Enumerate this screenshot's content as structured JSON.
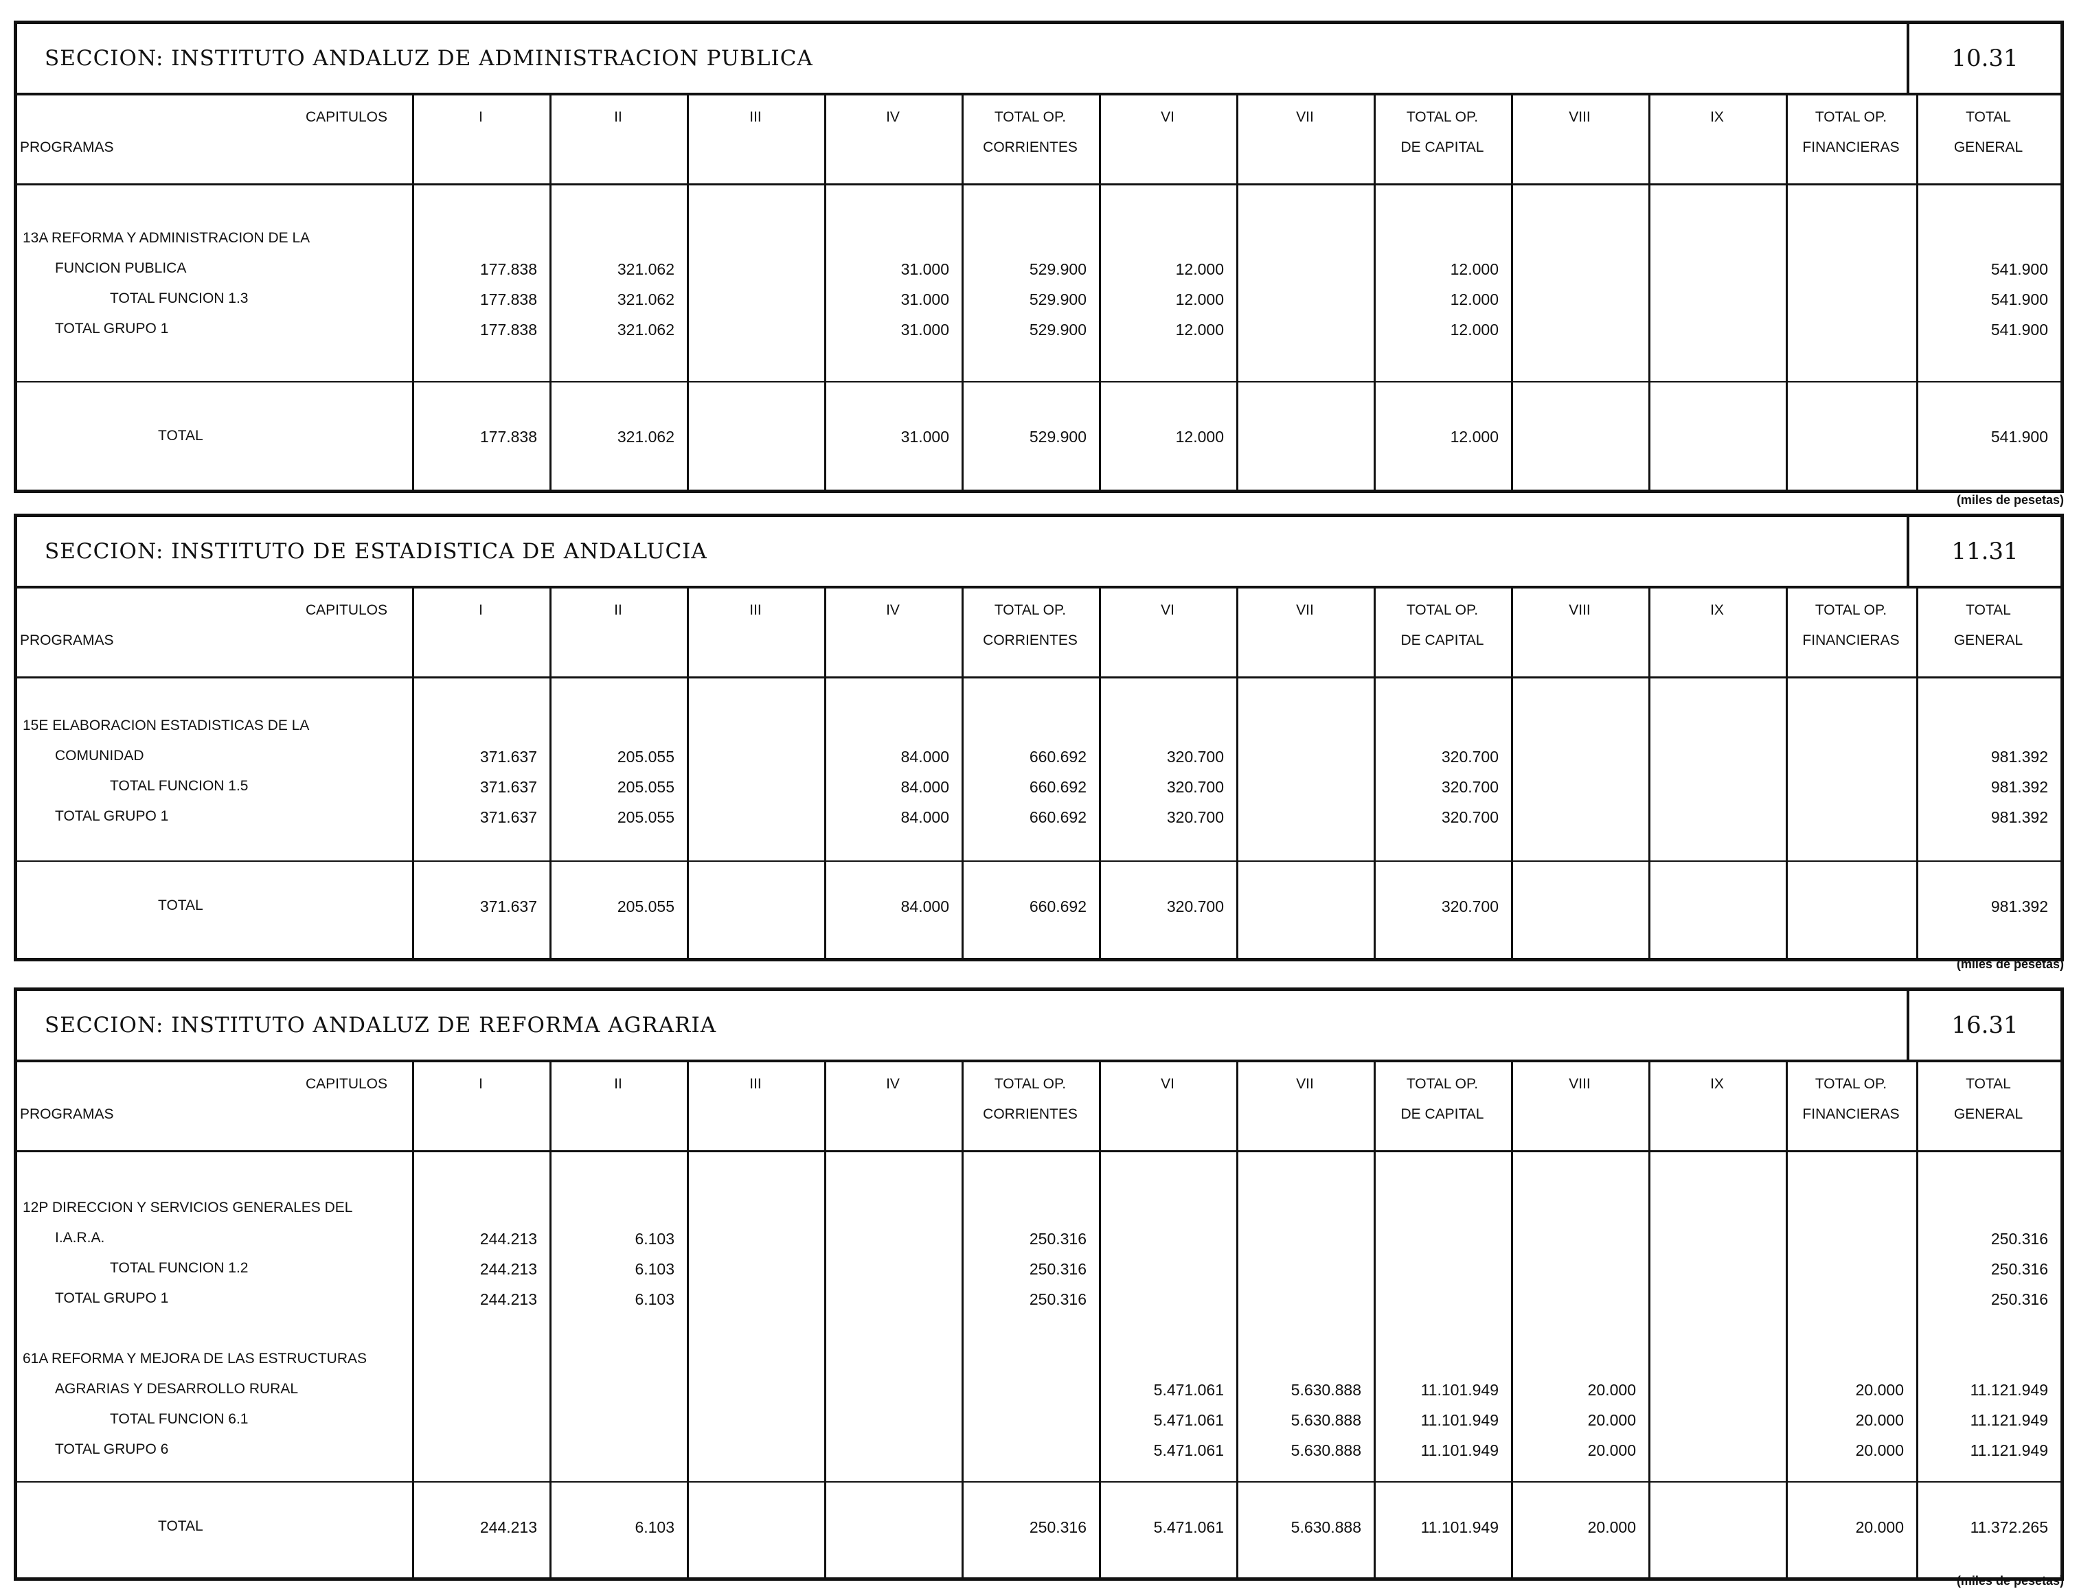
{
  "headers": {
    "capitulos": "CAPITULOS",
    "programas": "PROGRAMAS",
    "cols": [
      {
        "l1": "I",
        "l2": ""
      },
      {
        "l1": "II",
        "l2": ""
      },
      {
        "l1": "III",
        "l2": ""
      },
      {
        "l1": "IV",
        "l2": ""
      },
      {
        "l1": "TOTAL OP.",
        "l2": "CORRIENTES"
      },
      {
        "l1": "VI",
        "l2": ""
      },
      {
        "l1": "VII",
        "l2": ""
      },
      {
        "l1": "TOTAL OP.",
        "l2": "DE CAPITAL"
      },
      {
        "l1": "VIII",
        "l2": ""
      },
      {
        "l1": "IX",
        "l2": ""
      },
      {
        "l1": "TOTAL OP.",
        "l2": "FINANCIERAS"
      },
      {
        "l1": "TOTAL",
        "l2": "GENERAL"
      }
    ]
  },
  "units": "(miles de pesetas)",
  "sections": [
    {
      "title": "SECCION:  INSTITUTO ANDALUZ DE ADMINISTRACION PUBLICA",
      "code": "10.31",
      "rows": [
        {
          "label": "13A REFORMA Y ADMINISTRACION DE LA",
          "indent": 0,
          "values": [
            "",
            "",
            "",
            "",
            "",
            "",
            "",
            "",
            "",
            "",
            "",
            ""
          ]
        },
        {
          "label": "FUNCION PUBLICA",
          "indent": 1,
          "values": [
            "177.838",
            "321.062",
            "",
            "31.000",
            "529.900",
            "12.000",
            "",
            "12.000",
            "",
            "",
            "",
            "541.900"
          ]
        },
        {
          "label": "TOTAL FUNCION 1.3",
          "indent": 2,
          "values": [
            "177.838",
            "321.062",
            "",
            "31.000",
            "529.900",
            "12.000",
            "",
            "12.000",
            "",
            "",
            "",
            "541.900"
          ]
        },
        {
          "label": "TOTAL GRUPO 1",
          "indent": 1,
          "values": [
            "177.838",
            "321.062",
            "",
            "31.000",
            "529.900",
            "12.000",
            "",
            "12.000",
            "",
            "",
            "",
            "541.900"
          ]
        }
      ],
      "total": {
        "label": "TOTAL",
        "values": [
          "177.838",
          "321.062",
          "",
          "31.000",
          "529.900",
          "12.000",
          "",
          "12.000",
          "",
          "",
          "",
          "541.900"
        ]
      }
    },
    {
      "title": "SECCION:  INSTITUTO DE ESTADISTICA DE ANDALUCIA",
      "code": "11.31",
      "rows": [
        {
          "label": "15E ELABORACION ESTADISTICAS DE LA",
          "indent": 0,
          "values": [
            "",
            "",
            "",
            "",
            "",
            "",
            "",
            "",
            "",
            "",
            "",
            ""
          ]
        },
        {
          "label": "COMUNIDAD",
          "indent": 1,
          "values": [
            "371.637",
            "205.055",
            "",
            "84.000",
            "660.692",
            "320.700",
            "",
            "320.700",
            "",
            "",
            "",
            "981.392"
          ]
        },
        {
          "label": "TOTAL FUNCION 1.5",
          "indent": 2,
          "values": [
            "371.637",
            "205.055",
            "",
            "84.000",
            "660.692",
            "320.700",
            "",
            "320.700",
            "",
            "",
            "",
            "981.392"
          ]
        },
        {
          "label": "TOTAL GRUPO 1",
          "indent": 1,
          "values": [
            "371.637",
            "205.055",
            "",
            "84.000",
            "660.692",
            "320.700",
            "",
            "320.700",
            "",
            "",
            "",
            "981.392"
          ]
        }
      ],
      "total": {
        "label": "TOTAL",
        "values": [
          "371.637",
          "205.055",
          "",
          "84.000",
          "660.692",
          "320.700",
          "",
          "320.700",
          "",
          "",
          "",
          "981.392"
        ]
      }
    },
    {
      "title": "SECCION:  INSTITUTO ANDALUZ DE REFORMA AGRARIA",
      "code": "16.31",
      "rows": [
        {
          "label": "12P DIRECCION Y SERVICIOS GENERALES DEL",
          "indent": 0,
          "values": [
            "",
            "",
            "",
            "",
            "",
            "",
            "",
            "",
            "",
            "",
            "",
            ""
          ]
        },
        {
          "label": "I.A.R.A.",
          "indent": 1,
          "values": [
            "244.213",
            "6.103",
            "",
            "",
            "250.316",
            "",
            "",
            "",
            "",
            "",
            "",
            "250.316"
          ]
        },
        {
          "label": "TOTAL FUNCION 1.2",
          "indent": 2,
          "values": [
            "244.213",
            "6.103",
            "",
            "",
            "250.316",
            "",
            "",
            "",
            "",
            "",
            "",
            "250.316"
          ]
        },
        {
          "label": "TOTAL GRUPO 1",
          "indent": 1,
          "values": [
            "244.213",
            "6.103",
            "",
            "",
            "250.316",
            "",
            "",
            "",
            "",
            "",
            "",
            "250.316"
          ]
        },
        {
          "label": "61A REFORMA Y MEJORA DE LAS ESTRUCTURAS",
          "indent": 0,
          "values": [
            "",
            "",
            "",
            "",
            "",
            "",
            "",
            "",
            "",
            "",
            "",
            ""
          ]
        },
        {
          "label": "AGRARIAS Y DESARROLLO RURAL",
          "indent": 1,
          "values": [
            "",
            "",
            "",
            "",
            "",
            "5.471.061",
            "5.630.888",
            "11.101.949",
            "20.000",
            "",
            "20.000",
            "11.121.949"
          ]
        },
        {
          "label": "TOTAL FUNCION 6.1",
          "indent": 2,
          "values": [
            "",
            "",
            "",
            "",
            "",
            "5.471.061",
            "5.630.888",
            "11.101.949",
            "20.000",
            "",
            "20.000",
            "11.121.949"
          ]
        },
        {
          "label": "TOTAL GRUPO 6",
          "indent": 1,
          "values": [
            "",
            "",
            "",
            "",
            "",
            "5.471.061",
            "5.630.888",
            "11.101.949",
            "20.000",
            "",
            "20.000",
            "11.121.949"
          ]
        }
      ],
      "total": {
        "label": "TOTAL",
        "values": [
          "244.213",
          "6.103",
          "",
          "",
          "250.316",
          "5.471.061",
          "5.630.888",
          "11.101.949",
          "20.000",
          "",
          "20.000",
          "11.372.265"
        ]
      }
    }
  ]
}
